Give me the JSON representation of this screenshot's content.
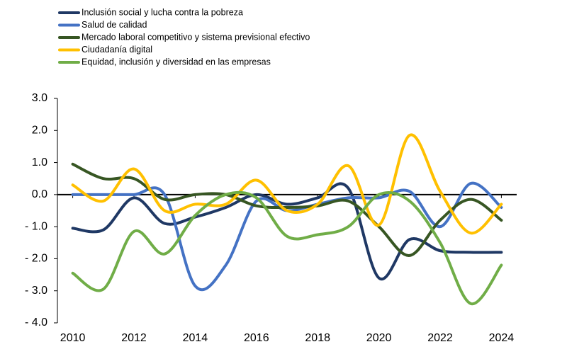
{
  "chart_data": {
    "type": "line",
    "x": [
      2010,
      2011,
      2012,
      2013,
      2014,
      2015,
      2016,
      2017,
      2018,
      2019,
      2020,
      2021,
      2022,
      2023,
      2024
    ],
    "xlim": [
      2009.5,
      2024.5
    ],
    "xticks": [
      2010,
      2012,
      2014,
      2016,
      2018,
      2020,
      2022,
      2024
    ],
    "ylim": [
      -4,
      3
    ],
    "yticks": [
      {
        "value": 3,
        "label": "3.0"
      },
      {
        "value": 2,
        "label": "2.0"
      },
      {
        "value": 1,
        "label": "1.0"
      },
      {
        "value": 0,
        "label": "0.0"
      },
      {
        "value": -1,
        "label": "- 1.0"
      },
      {
        "value": -2,
        "label": "- 2.0"
      },
      {
        "value": -3,
        "label": "- 3.0"
      },
      {
        "value": -4,
        "label": "- 4.0"
      }
    ],
    "grid": false,
    "legend": "top-left",
    "series": [
      {
        "name": "Inclusión social y lucha contra la pobreza",
        "color": "#1f3864",
        "values": [
          -1.05,
          -1.1,
          -0.1,
          -0.9,
          -0.7,
          -0.4,
          0.0,
          -0.3,
          -0.1,
          0.2,
          -2.6,
          -1.4,
          -1.75,
          -1.8,
          -1.8
        ]
      },
      {
        "name": "Salud de calidad",
        "color": "#4472c4",
        "values": [
          0.0,
          0.0,
          0.0,
          0.0,
          -2.85,
          -2.2,
          -0.2,
          -0.5,
          -0.3,
          -0.1,
          -0.1,
          0.1,
          -1.0,
          0.35,
          -0.4
        ]
      },
      {
        "name": "Mercado laboral competitivo y sistema previsional efectivo",
        "color": "#375623",
        "values": [
          0.95,
          0.5,
          0.5,
          -0.15,
          0.0,
          0.0,
          -0.35,
          -0.4,
          -0.35,
          -0.2,
          -1.0,
          -1.9,
          -0.8,
          -0.15,
          -0.8
        ]
      },
      {
        "name": "Ciudadanía digital",
        "color": "#ffc000",
        "values": [
          0.3,
          -0.2,
          0.8,
          -0.5,
          -0.3,
          -0.3,
          0.45,
          -0.5,
          -0.3,
          0.9,
          -0.95,
          1.85,
          0.1,
          -1.2,
          -0.3
        ]
      },
      {
        "name": "Equidad, inclusión y diversidad en las empresas",
        "color": "#70ad47",
        "values": [
          -2.45,
          -2.95,
          -1.15,
          -1.85,
          -0.65,
          0.0,
          -0.1,
          -1.3,
          -1.25,
          -1.0,
          0.0,
          -0.2,
          -1.5,
          -3.4,
          -2.2
        ]
      }
    ]
  }
}
